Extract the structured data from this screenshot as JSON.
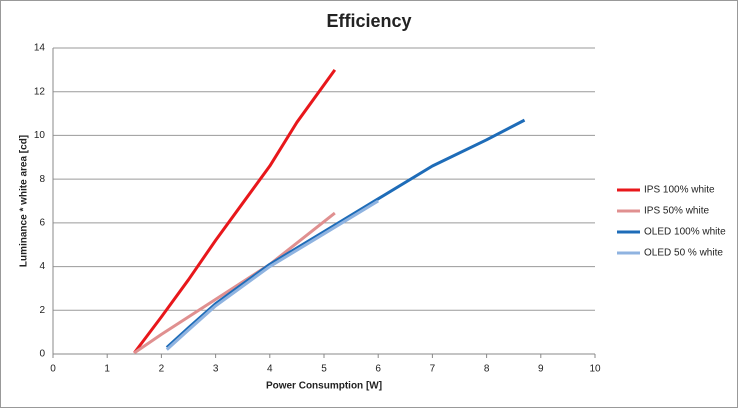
{
  "chart_data": {
    "type": "line",
    "title": "Efficiency",
    "x_label": "Power Consumption [W]",
    "y_label": "Luminance * white area [cd]",
    "xlim": [
      0,
      10
    ],
    "xticks": [
      0,
      1,
      2,
      3,
      4,
      5,
      6,
      7,
      8,
      9,
      10
    ],
    "ylim": [
      0,
      14
    ],
    "yticks": [
      0,
      2,
      4,
      6,
      8,
      10,
      12,
      14
    ],
    "grid": true,
    "legend": "right",
    "series": [
      {
        "name": "IPS 100% white",
        "color": "#e8171b",
        "x": [
          1.5,
          2,
          2.5,
          3,
          3.5,
          4,
          4.5,
          5.2
        ],
        "values": [
          0.05,
          1.7,
          3.4,
          5.2,
          6.9,
          8.6,
          10.6,
          13
        ]
      },
      {
        "name": "IPS 50% white",
        "color": "#e09090",
        "x": [
          1.5,
          2,
          3,
          4,
          5.2
        ],
        "values": [
          0.05,
          0.9,
          2.5,
          4.1,
          6.45
        ]
      },
      {
        "name": "OLED 100% white",
        "color": "#1e6cb8",
        "x": [
          2.1,
          2.5,
          3,
          4,
          5,
          6,
          7,
          8,
          8.7
        ],
        "values": [
          0.3,
          1.2,
          2.3,
          4.1,
          5.6,
          7.1,
          8.6,
          9.8,
          10.7
        ]
      },
      {
        "name": "OLED 50 % white",
        "color": "#8fb3e0",
        "x": [
          2.1,
          2.5,
          3,
          4,
          5,
          6
        ],
        "values": [
          0.2,
          1.1,
          2.2,
          4.0,
          5.5,
          7.0
        ]
      }
    ]
  }
}
